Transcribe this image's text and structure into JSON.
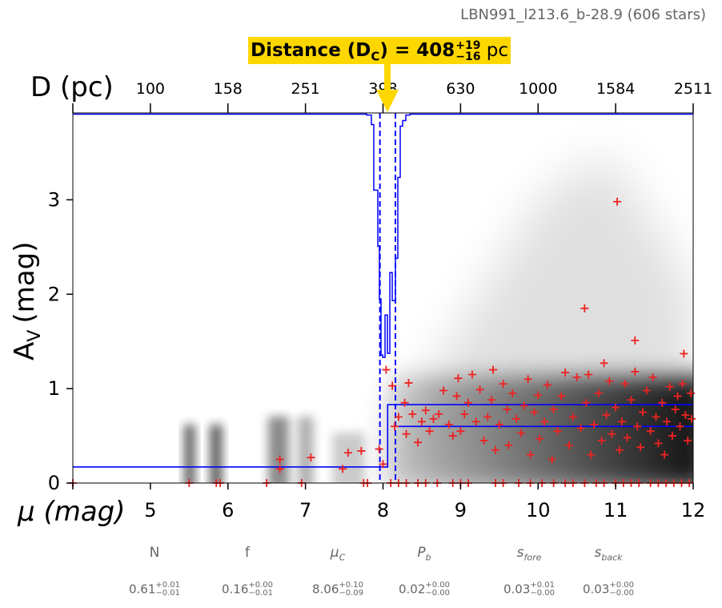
{
  "title": "LBN991_l213.6_b-28.9 (606 stars)",
  "banner": {
    "prefix": "Distance (D",
    "sub": "C",
    "suffix": ") = 408",
    "plus": "+19",
    "minus": "−16",
    "unit": "pc"
  },
  "chart_data": {
    "type": "scatter",
    "xlabel": "μ (mag)",
    "ylabel": "A",
    "ylabel_sub": "V",
    "ylabel_unit": "(mag)",
    "top_xlabel": "D (pc)",
    "xlim": [
      4,
      12
    ],
    "ylim": [
      0,
      3.92
    ],
    "x_ticks": [
      4,
      5,
      6,
      7,
      8,
      9,
      10,
      11,
      12
    ],
    "x_tick_labels": [
      "",
      "5",
      "6",
      "7",
      "8",
      "9",
      "10",
      "11",
      "12"
    ],
    "y_ticks": [
      0,
      1,
      2,
      3
    ],
    "y_tick_labels": [
      "0",
      "1",
      "2",
      "3"
    ],
    "top_ticks_mu": [
      4,
      5,
      6,
      7,
      8,
      9,
      10,
      11,
      12
    ],
    "top_tick_labels": [
      "",
      "100",
      "158",
      "251",
      "398",
      "630",
      "1000",
      "1584",
      "2511"
    ],
    "colors": {
      "stars": "#ee2222",
      "model": "#0000ff",
      "banner": "#ffd700"
    },
    "model": {
      "foreground_av": 0.17,
      "cloud_mu": 8.06,
      "background_av_upper": 0.83,
      "background_av_lower": 0.6,
      "mu_lower_start": 8.12,
      "dashed_mu": [
        7.96,
        8.16
      ]
    },
    "posterior_hist": {
      "mu_edges": [
        7.737,
        7.789,
        7.85,
        7.881,
        7.933,
        7.953,
        7.974,
        7.995,
        8.026,
        8.057,
        8.088,
        8.119,
        8.16,
        8.191,
        8.222,
        8.253,
        8.294,
        8.346,
        8.377
      ],
      "av_level": [
        3.907,
        3.898,
        3.797,
        3.102,
        2.508,
        1.949,
        1.356,
        1.331,
        1.78,
        1.373,
        2.229,
        1.932,
        2.381,
        3.237,
        3.78,
        3.839,
        3.898,
        3.907
      ]
    },
    "stars": [
      [
        4.0,
        0
      ],
      [
        5.5,
        0
      ],
      [
        5.85,
        0
      ],
      [
        5.9,
        0
      ],
      [
        6.5,
        0
      ],
      [
        6.95,
        0
      ],
      [
        7.75,
        0
      ],
      [
        7.8,
        0
      ],
      [
        8.1,
        0
      ],
      [
        8.2,
        0
      ],
      [
        8.3,
        0
      ],
      [
        8.45,
        0
      ],
      [
        8.55,
        0
      ],
      [
        8.7,
        0
      ],
      [
        8.9,
        0
      ],
      [
        9.0,
        0
      ],
      [
        9.1,
        0
      ],
      [
        9.45,
        0
      ],
      [
        9.55,
        0
      ],
      [
        9.75,
        0
      ],
      [
        9.9,
        0
      ],
      [
        10.05,
        0
      ],
      [
        10.2,
        0
      ],
      [
        10.35,
        0
      ],
      [
        10.45,
        0
      ],
      [
        10.6,
        0
      ],
      [
        10.75,
        0
      ],
      [
        10.85,
        0
      ],
      [
        11.0,
        0
      ],
      [
        11.1,
        0
      ],
      [
        11.2,
        0
      ],
      [
        11.3,
        0
      ],
      [
        11.45,
        0
      ],
      [
        11.55,
        0
      ],
      [
        11.65,
        0
      ],
      [
        11.75,
        0
      ],
      [
        11.85,
        0
      ],
      [
        11.95,
        0
      ],
      [
        6.67,
        0.25
      ],
      [
        6.67,
        0.15
      ],
      [
        7.07,
        0.27
      ],
      [
        7.48,
        0.15
      ],
      [
        7.55,
        0.32
      ],
      [
        7.72,
        0.34
      ],
      [
        7.95,
        0.36
      ],
      [
        8.0,
        0.2
      ],
      [
        8.04,
        1.2
      ],
      [
        8.12,
        1.03
      ],
      [
        8.15,
        0.6
      ],
      [
        8.2,
        0.7
      ],
      [
        8.28,
        0.85
      ],
      [
        8.33,
        1.06
      ],
      [
        8.3,
        0.52
      ],
      [
        8.38,
        0.73
      ],
      [
        8.45,
        0.43
      ],
      [
        8.5,
        0.65
      ],
      [
        8.55,
        0.77
      ],
      [
        8.6,
        0.55
      ],
      [
        8.65,
        0.68
      ],
      [
        8.72,
        0.73
      ],
      [
        8.78,
        0.98
      ],
      [
        8.85,
        0.62
      ],
      [
        8.9,
        0.5
      ],
      [
        8.95,
        0.92
      ],
      [
        8.97,
        1.11
      ],
      [
        9.0,
        0.55
      ],
      [
        9.05,
        0.73
      ],
      [
        9.1,
        0.85
      ],
      [
        9.15,
        1.15
      ],
      [
        9.2,
        0.65
      ],
      [
        9.25,
        0.99
      ],
      [
        9.3,
        0.45
      ],
      [
        9.35,
        0.7
      ],
      [
        9.4,
        0.88
      ],
      [
        9.42,
        1.2
      ],
      [
        9.45,
        0.35
      ],
      [
        9.5,
        0.62
      ],
      [
        9.55,
        1.05
      ],
      [
        9.6,
        0.78
      ],
      [
        9.62,
        0.4
      ],
      [
        9.67,
        0.95
      ],
      [
        9.72,
        0.68
      ],
      [
        9.78,
        0.53
      ],
      [
        9.82,
        0.82
      ],
      [
        9.87,
        1.1
      ],
      [
        9.9,
        0.3
      ],
      [
        9.95,
        0.75
      ],
      [
        10.0,
        0.93
      ],
      [
        10.02,
        0.47
      ],
      [
        10.08,
        0.65
      ],
      [
        10.12,
        1.04
      ],
      [
        10.18,
        0.25
      ],
      [
        10.2,
        0.78
      ],
      [
        10.25,
        0.55
      ],
      [
        10.3,
        0.92
      ],
      [
        10.35,
        1.17
      ],
      [
        10.4,
        0.4
      ],
      [
        10.45,
        0.7
      ],
      [
        10.5,
        1.12
      ],
      [
        10.55,
        0.58
      ],
      [
        10.62,
        0.85
      ],
      [
        10.65,
        1.15
      ],
      [
        10.68,
        0.3
      ],
      [
        10.72,
        0.62
      ],
      [
        10.78,
        0.95
      ],
      [
        10.82,
        0.45
      ],
      [
        10.88,
        0.72
      ],
      [
        10.92,
        1.08
      ],
      [
        10.95,
        0.52
      ],
      [
        11.0,
        0.8
      ],
      [
        11.05,
        0.35
      ],
      [
        11.08,
        0.65
      ],
      [
        11.12,
        1.05
      ],
      [
        11.15,
        0.48
      ],
      [
        11.2,
        0.88
      ],
      [
        11.25,
        1.18
      ],
      [
        11.28,
        0.6
      ],
      [
        11.32,
        0.38
      ],
      [
        11.35,
        0.75
      ],
      [
        11.4,
        0.98
      ],
      [
        11.45,
        0.55
      ],
      [
        11.48,
        1.12
      ],
      [
        11.52,
        0.7
      ],
      [
        11.55,
        0.42
      ],
      [
        11.6,
        0.85
      ],
      [
        11.63,
        0.3
      ],
      [
        11.66,
        0.65
      ],
      [
        11.7,
        1.02
      ],
      [
        11.73,
        0.5
      ],
      [
        11.77,
        0.78
      ],
      [
        11.8,
        0.92
      ],
      [
        11.83,
        0.6
      ],
      [
        11.86,
        1.05
      ],
      [
        11.9,
        0.72
      ],
      [
        11.93,
        0.45
      ],
      [
        11.97,
        0.95
      ],
      [
        11.98,
        0.68
      ],
      [
        11.02,
        2.98
      ],
      [
        10.6,
        1.85
      ],
      [
        11.25,
        1.51
      ],
      [
        10.85,
        1.27
      ],
      [
        11.88,
        1.37
      ]
    ]
  },
  "parameters": [
    {
      "name": "N",
      "value": "0.61",
      "plus": "+0.01",
      "minus": "−0.01"
    },
    {
      "name": "f",
      "value": "0.16",
      "plus": "+0.00",
      "minus": "−0.01"
    },
    {
      "name": "μ",
      "sub": "C",
      "value": "8.06",
      "plus": "+0.10",
      "minus": "−0.09"
    },
    {
      "name": "P",
      "sub": "b",
      "value": "0.02",
      "plus": "+0.00",
      "minus": "−0.00"
    },
    {
      "name": "s",
      "sub": "fore",
      "value": "0.03",
      "plus": "+0.01",
      "minus": "−0.00"
    },
    {
      "name": "s",
      "sub": "back",
      "value": "0.03",
      "plus": "+0.00",
      "minus": "−0.00"
    }
  ]
}
